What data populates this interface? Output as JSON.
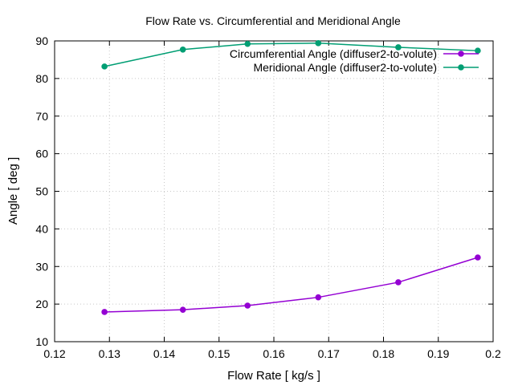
{
  "chart_data": {
    "type": "line",
    "title": "Flow Rate vs. Circumferential and Meridional Angle",
    "xlabel": "Flow Rate [ kg/s ]",
    "ylabel": "Angle [ deg ]",
    "xlim": [
      0.12,
      0.2
    ],
    "ylim": [
      10,
      90
    ],
    "xticks": [
      "0.12",
      "0.13",
      "0.14",
      "0.15",
      "0.16",
      "0.17",
      "0.18",
      "0.19",
      "0.2"
    ],
    "yticks": [
      "10",
      "20",
      "30",
      "40",
      "50",
      "60",
      "70",
      "80",
      "90"
    ],
    "grid": true,
    "legend_position": "top-right",
    "x": [
      0.1291,
      0.1434,
      0.1552,
      0.1681,
      0.1827,
      0.1972
    ],
    "series": [
      {
        "name": "Circumferential Angle (diffuser2-to-volute)",
        "color": "#9400d3",
        "values": [
          17.9,
          18.5,
          19.6,
          21.8,
          25.8,
          32.4
        ]
      },
      {
        "name": "Meridional Angle (diffuser2-to-volute)",
        "color": "#009e73",
        "values": [
          83.2,
          87.7,
          89.2,
          89.4,
          88.3,
          87.4
        ]
      }
    ]
  }
}
